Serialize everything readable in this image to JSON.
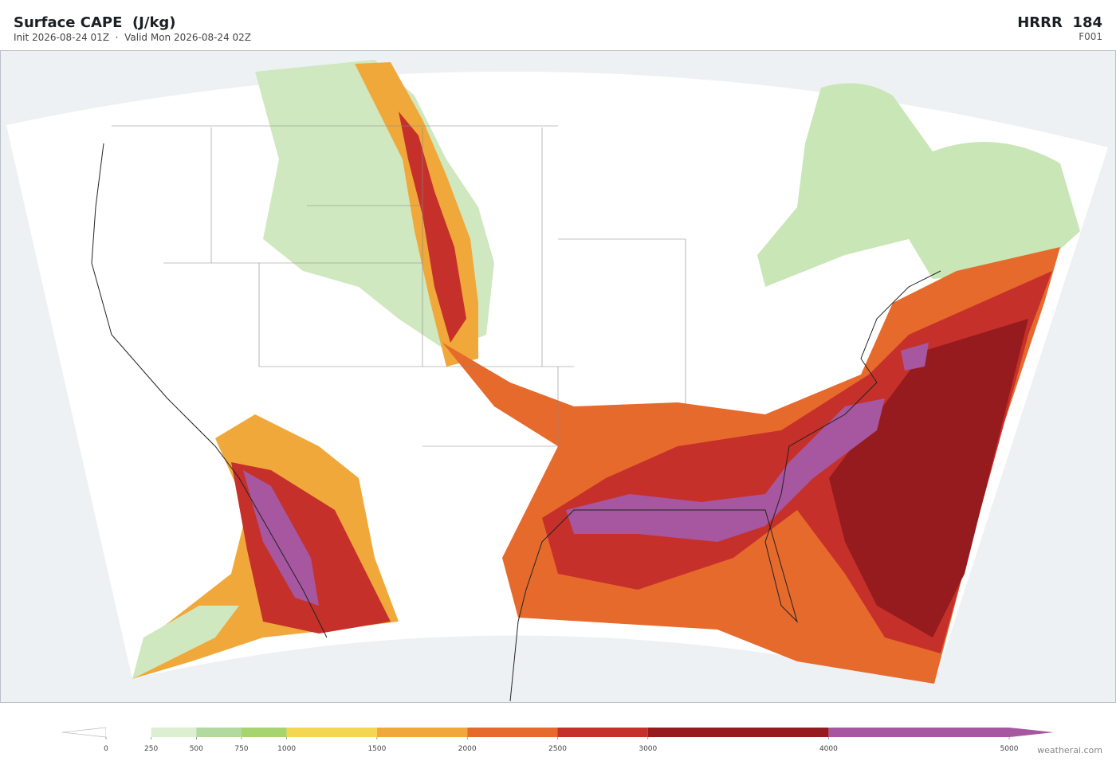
{
  "header": {
    "title": "Surface CAPE  (J/kg)",
    "subtitle": "Init 2026-08-24 01Z  ·  Valid Mon 2026-08-24 02Z",
    "model": "HRRR  184",
    "forecast_hour": "F001"
  },
  "colorbar": {
    "xlim": [
      0,
      5000
    ],
    "ticks": [
      0,
      250,
      500,
      750,
      1000,
      1500,
      2000,
      2500,
      3000,
      4000,
      5000
    ],
    "colors": [
      "#ffffff",
      "#dcefd0",
      "#b2d9a0",
      "#a6d46e",
      "#f3d651",
      "#f0a83a",
      "#e66a2c",
      "#c6302a",
      "#951b1e",
      "#a657a0"
    ]
  },
  "footer": {
    "credit": "weatherai.com"
  }
}
